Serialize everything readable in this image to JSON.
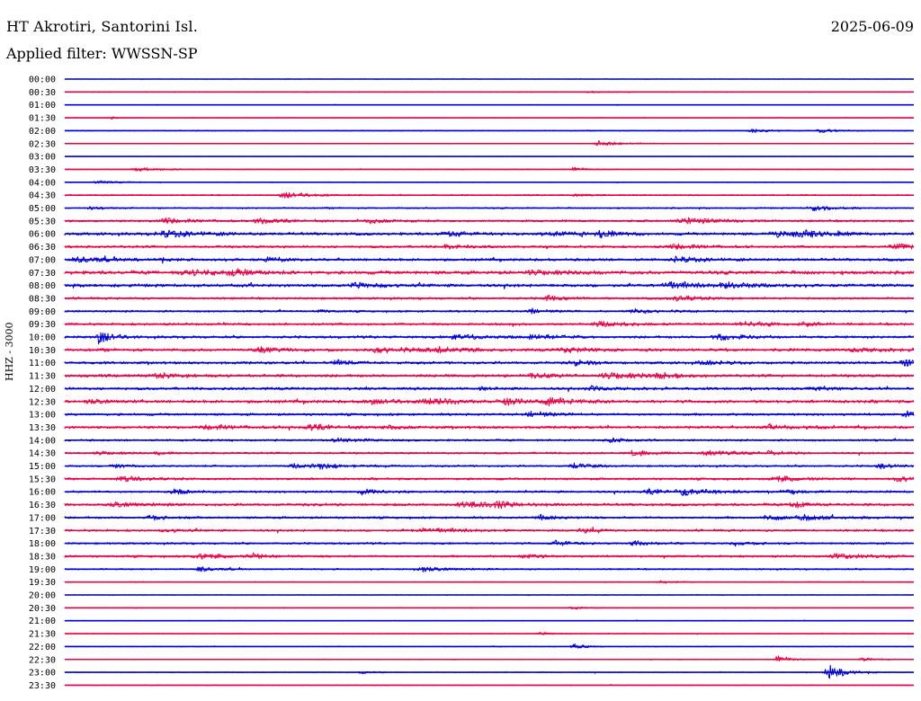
{
  "header": {
    "station": "HT Akrotiri, Santorini Isl.",
    "date": "2025-06-09",
    "filter": "Applied filter: WWSSN-SP"
  },
  "channel_label": "HHZ - 3000",
  "colors": {
    "trace_even": "#0000dd",
    "trace_odd": "#ee0044"
  },
  "chart_data": {
    "type": "line",
    "title": "",
    "ylabel": "HHZ - 3000",
    "rows": [
      {
        "time": "00:00",
        "color": "blue",
        "noise": 0.25,
        "events": []
      },
      {
        "time": "00:30",
        "color": "red",
        "noise": 0.35,
        "events": [
          [
            0.62,
            1.2,
            0.02
          ]
        ]
      },
      {
        "time": "01:00",
        "color": "blue",
        "noise": 0.25,
        "events": []
      },
      {
        "time": "01:30",
        "color": "red",
        "noise": 0.25,
        "events": [
          [
            0.055,
            1.5,
            0.008
          ]
        ]
      },
      {
        "time": "02:00",
        "color": "blue",
        "noise": 0.45,
        "events": [
          [
            0.81,
            2.5,
            0.02
          ],
          [
            0.89,
            2.5,
            0.02
          ]
        ]
      },
      {
        "time": "02:30",
        "color": "red",
        "noise": 0.3,
        "events": [
          [
            0.63,
            4,
            0.025
          ]
        ]
      },
      {
        "time": "03:00",
        "color": "blue",
        "noise": 0.2,
        "events": []
      },
      {
        "time": "03:30",
        "color": "red",
        "noise": 0.35,
        "events": [
          [
            0.085,
            2.5,
            0.03
          ],
          [
            0.6,
            3,
            0.015
          ]
        ]
      },
      {
        "time": "04:00",
        "color": "blue",
        "noise": 0.35,
        "events": [
          [
            0.04,
            2.5,
            0.02
          ]
        ]
      },
      {
        "time": "04:30",
        "color": "red",
        "noise": 0.6,
        "events": [
          [
            0.26,
            3.5,
            0.03
          ],
          [
            0.6,
            2,
            0.01
          ]
        ]
      },
      {
        "time": "05:00",
        "color": "blue",
        "noise": 0.7,
        "events": [
          [
            0.88,
            4,
            0.02
          ],
          [
            0.03,
            1.5,
            0.02
          ]
        ]
      },
      {
        "time": "05:30",
        "color": "red",
        "noise": 1.0,
        "events": [
          [
            0.12,
            3,
            0.03
          ],
          [
            0.23,
            3,
            0.03
          ],
          [
            0.36,
            3,
            0.02
          ],
          [
            0.73,
            3.5,
            0.04
          ]
        ]
      },
      {
        "time": "06:00",
        "color": "blue",
        "noise": 1.3,
        "events": [
          [
            0.12,
            3.5,
            0.04
          ],
          [
            0.45,
            3,
            0.03
          ],
          [
            0.57,
            3,
            0.03
          ],
          [
            0.63,
            4,
            0.02
          ],
          [
            0.84,
            3.5,
            0.03
          ],
          [
            0.87,
            3,
            0.03
          ]
        ]
      },
      {
        "time": "06:30",
        "color": "red",
        "noise": 1.1,
        "events": [
          [
            0.45,
            3,
            0.02
          ],
          [
            0.72,
            3,
            0.03
          ],
          [
            0.98,
            3,
            0.03
          ]
        ]
      },
      {
        "time": "07:00",
        "color": "blue",
        "noise": 1.2,
        "events": [
          [
            0.02,
            3.5,
            0.03
          ],
          [
            0.24,
            3.5,
            0.02
          ],
          [
            0.11,
            2,
            0.01
          ],
          [
            0.72,
            3,
            0.03
          ]
        ]
      },
      {
        "time": "07:30",
        "color": "red",
        "noise": 1.6,
        "events": [
          [
            0.15,
            3,
            0.05
          ],
          [
            0.2,
            3,
            0.02
          ],
          [
            0.55,
            2.5,
            0.03
          ]
        ]
      },
      {
        "time": "08:00",
        "color": "blue",
        "noise": 1.4,
        "events": [
          [
            0.34,
            3,
            0.03
          ],
          [
            0.71,
            4,
            0.03
          ],
          [
            0.78,
            3.5,
            0.03
          ]
        ]
      },
      {
        "time": "08:30",
        "color": "red",
        "noise": 1.0,
        "events": [
          [
            0.57,
            3,
            0.02
          ],
          [
            0.72,
            3,
            0.03
          ]
        ]
      },
      {
        "time": "09:00",
        "color": "blue",
        "noise": 0.9,
        "events": [
          [
            0.3,
            2,
            0.01
          ],
          [
            0.55,
            2.5,
            0.02
          ],
          [
            0.67,
            2.5,
            0.03
          ]
        ]
      },
      {
        "time": "09:30",
        "color": "red",
        "noise": 1.1,
        "events": [
          [
            0.63,
            3,
            0.03
          ],
          [
            0.8,
            3,
            0.03
          ],
          [
            0.87,
            2.5,
            0.02
          ]
        ]
      },
      {
        "time": "10:00",
        "color": "blue",
        "noise": 1.2,
        "events": [
          [
            0.04,
            8,
            0.015
          ],
          [
            0.46,
            3,
            0.03
          ],
          [
            0.55,
            3,
            0.03
          ],
          [
            0.77,
            3,
            0.03
          ]
        ]
      },
      {
        "time": "10:30",
        "color": "red",
        "noise": 1.3,
        "events": [
          [
            0.23,
            3,
            0.03
          ],
          [
            0.37,
            3,
            0.04
          ],
          [
            0.44,
            3,
            0.03
          ],
          [
            0.59,
            2.5,
            0.03
          ],
          [
            0.93,
            3,
            0.03
          ]
        ]
      },
      {
        "time": "11:00",
        "color": "blue",
        "noise": 1.2,
        "events": [
          [
            0.32,
            3,
            0.02
          ],
          [
            0.6,
            3,
            0.02
          ],
          [
            0.75,
            3,
            0.02
          ],
          [
            0.99,
            4,
            0.03
          ]
        ]
      },
      {
        "time": "11:30",
        "color": "red",
        "noise": 1.3,
        "events": [
          [
            0.11,
            2.5,
            0.03
          ],
          [
            0.55,
            3,
            0.02
          ],
          [
            0.64,
            3.5,
            0.04
          ],
          [
            0.7,
            3,
            0.02
          ]
        ]
      },
      {
        "time": "12:00",
        "color": "blue",
        "noise": 1.2,
        "events": [
          [
            0.49,
            2.5,
            0.01
          ],
          [
            0.62,
            3,
            0.03
          ],
          [
            0.88,
            3,
            0.02
          ]
        ]
      },
      {
        "time": "12:30",
        "color": "red",
        "noise": 1.4,
        "events": [
          [
            0.03,
            2,
            0.02
          ],
          [
            0.36,
            2.5,
            0.03
          ],
          [
            0.43,
            3,
            0.03
          ],
          [
            0.52,
            3,
            0.04
          ],
          [
            0.57,
            4,
            0.025
          ]
        ]
      },
      {
        "time": "13:00",
        "color": "blue",
        "noise": 1.1,
        "events": [
          [
            0.55,
            4,
            0.02
          ],
          [
            0.99,
            4,
            0.01
          ]
        ]
      },
      {
        "time": "13:30",
        "color": "red",
        "noise": 1.2,
        "events": [
          [
            0.17,
            3,
            0.03
          ],
          [
            0.29,
            3.5,
            0.03
          ],
          [
            0.38,
            2.5,
            0.02
          ],
          [
            0.83,
            3,
            0.03
          ]
        ]
      },
      {
        "time": "14:00",
        "color": "blue",
        "noise": 0.9,
        "events": [
          [
            0.32,
            2.5,
            0.03
          ],
          [
            0.64,
            3,
            0.02
          ]
        ]
      },
      {
        "time": "14:30",
        "color": "red",
        "noise": 0.9,
        "events": [
          [
            0.04,
            2,
            0.02
          ],
          [
            0.11,
            2,
            0.02
          ],
          [
            0.67,
            3,
            0.02
          ],
          [
            0.76,
            2.5,
            0.04
          ],
          [
            0.83,
            2,
            0.02
          ]
        ]
      },
      {
        "time": "15:00",
        "color": "blue",
        "noise": 0.9,
        "events": [
          [
            0.06,
            2,
            0.02
          ],
          [
            0.27,
            2.5,
            0.02
          ],
          [
            0.3,
            3,
            0.03
          ],
          [
            0.6,
            3,
            0.02
          ],
          [
            0.96,
            3,
            0.02
          ]
        ]
      },
      {
        "time": "15:30",
        "color": "red",
        "noise": 1.0,
        "events": [
          [
            0.07,
            2.5,
            0.03
          ],
          [
            0.84,
            3,
            0.03
          ],
          [
            0.98,
            3,
            0.03
          ]
        ]
      },
      {
        "time": "16:00",
        "color": "blue",
        "noise": 1.0,
        "events": [
          [
            0.13,
            3,
            0.02
          ],
          [
            0.35,
            3,
            0.02
          ],
          [
            0.69,
            3,
            0.03
          ],
          [
            0.73,
            4,
            0.03
          ],
          [
            0.85,
            3,
            0.02
          ]
        ]
      },
      {
        "time": "16:30",
        "color": "red",
        "noise": 1.2,
        "events": [
          [
            0.06,
            2.5,
            0.03
          ],
          [
            0.47,
            3,
            0.04
          ],
          [
            0.51,
            3,
            0.02
          ],
          [
            0.86,
            3.5,
            0.02
          ]
        ]
      },
      {
        "time": "17:00",
        "color": "blue",
        "noise": 1.0,
        "events": [
          [
            0.1,
            3,
            0.02
          ],
          [
            0.56,
            3,
            0.02
          ],
          [
            0.83,
            3,
            0.03
          ],
          [
            0.87,
            3,
            0.03
          ]
        ]
      },
      {
        "time": "17:30",
        "color": "red",
        "noise": 1.0,
        "events": [
          [
            0.12,
            2,
            0.02
          ],
          [
            0.42,
            3,
            0.04
          ],
          [
            0.61,
            2.5,
            0.02
          ]
        ]
      },
      {
        "time": "18:00",
        "color": "blue",
        "noise": 0.9,
        "events": [
          [
            0.58,
            4,
            0.02
          ],
          [
            0.67,
            3,
            0.015
          ],
          [
            0.79,
            2.5,
            0.02
          ]
        ]
      },
      {
        "time": "18:30",
        "color": "red",
        "noise": 1.0,
        "events": [
          [
            0.16,
            3,
            0.03
          ],
          [
            0.22,
            3,
            0.02
          ],
          [
            0.54,
            2.5,
            0.02
          ],
          [
            0.91,
            3,
            0.03
          ]
        ]
      },
      {
        "time": "19:00",
        "color": "blue",
        "noise": 0.7,
        "events": [
          [
            0.16,
            3,
            0.02
          ],
          [
            0.42,
            3,
            0.03
          ]
        ]
      },
      {
        "time": "19:30",
        "color": "red",
        "noise": 0.4,
        "events": [
          [
            0.7,
            1.5,
            0.02
          ]
        ]
      },
      {
        "time": "20:00",
        "color": "blue",
        "noise": 0.35,
        "events": []
      },
      {
        "time": "20:30",
        "color": "red",
        "noise": 0.35,
        "events": [
          [
            0.6,
            1.5,
            0.02
          ]
        ]
      },
      {
        "time": "21:00",
        "color": "blue",
        "noise": 0.35,
        "events": []
      },
      {
        "time": "21:30",
        "color": "red",
        "noise": 0.35,
        "events": [
          [
            0.56,
            1.5,
            0.02
          ]
        ]
      },
      {
        "time": "22:00",
        "color": "blue",
        "noise": 0.35,
        "events": [
          [
            0.6,
            3,
            0.015
          ]
        ]
      },
      {
        "time": "22:30",
        "color": "red",
        "noise": 0.35,
        "events": [
          [
            0.84,
            5,
            0.015
          ],
          [
            0.94,
            2,
            0.02
          ]
        ]
      },
      {
        "time": "23:00",
        "color": "blue",
        "noise": 0.4,
        "events": [
          [
            0.35,
            2,
            0.015
          ],
          [
            0.9,
            9,
            0.02
          ]
        ]
      },
      {
        "time": "23:30",
        "color": "red",
        "noise": 0.35,
        "events": []
      }
    ]
  }
}
